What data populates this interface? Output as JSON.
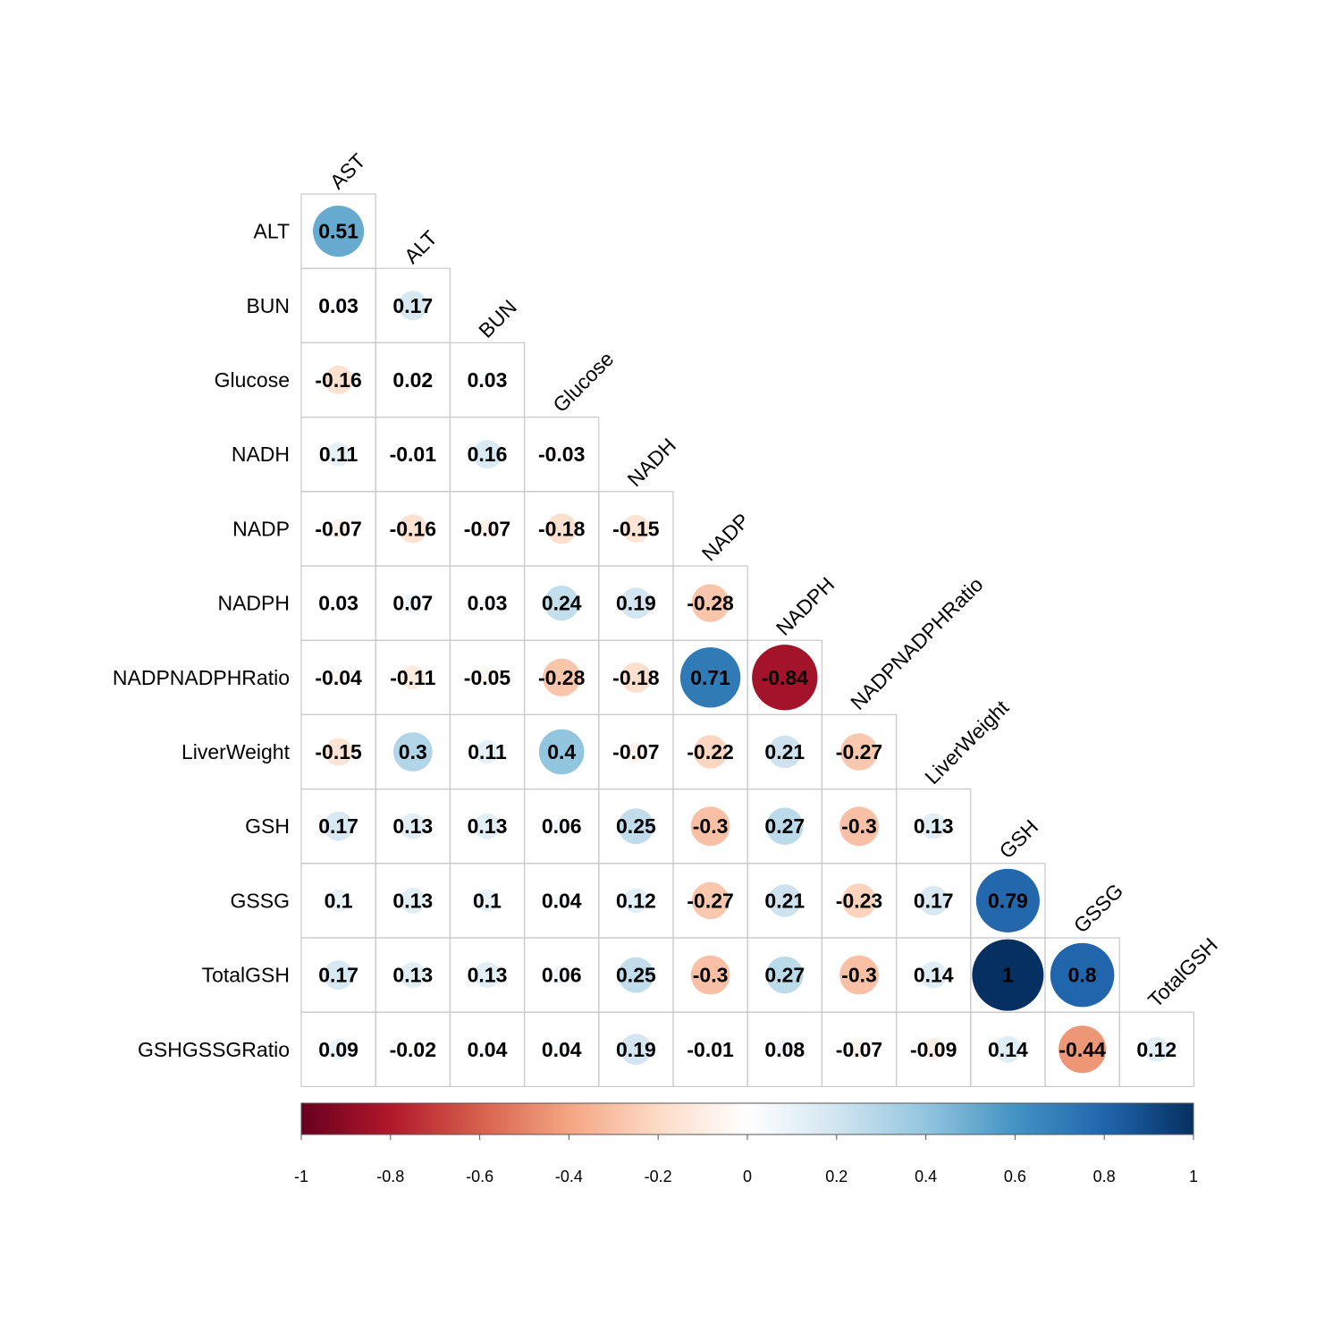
{
  "chart_data": {
    "type": "heatmap",
    "title": "",
    "variables": [
      "AST",
      "ALT",
      "BUN",
      "Glucose",
      "NADH",
      "NADP",
      "NADPH",
      "NADPNADPHRatio",
      "LiverWeight",
      "GSH",
      "GSSG",
      "TotalGSH",
      "GSHGSSGRatio"
    ],
    "row_labels": [
      "ALT",
      "BUN",
      "Glucose",
      "NADH",
      "NADP",
      "NADPH",
      "NADPNADPHRatio",
      "LiverWeight",
      "GSH",
      "GSSG",
      "TotalGSH",
      "GSHGSSGRatio"
    ],
    "col_labels": [
      "AST",
      "ALT",
      "BUN",
      "Glucose",
      "NADH",
      "NADP",
      "NADPH",
      "NADPNADPHRatio",
      "LiverWeight",
      "GSH",
      "GSSG",
      "TotalGSH"
    ],
    "matrix_shape": "lower-triangle",
    "values": [
      [
        0.51
      ],
      [
        0.03,
        0.17
      ],
      [
        -0.16,
        0.02,
        0.03
      ],
      [
        0.11,
        -0.01,
        0.16,
        -0.03
      ],
      [
        -0.07,
        -0.16,
        -0.07,
        -0.18,
        -0.15
      ],
      [
        0.03,
        0.07,
        0.03,
        0.24,
        0.19,
        -0.28
      ],
      [
        -0.04,
        -0.11,
        -0.05,
        -0.28,
        -0.18,
        0.71,
        -0.84
      ],
      [
        -0.15,
        0.3,
        0.11,
        0.4,
        -0.07,
        -0.22,
        0.21,
        -0.27
      ],
      [
        0.17,
        0.13,
        0.13,
        0.06,
        0.25,
        -0.3,
        0.27,
        -0.3,
        0.13
      ],
      [
        0.1,
        0.13,
        0.1,
        0.04,
        0.12,
        -0.27,
        0.21,
        -0.23,
        0.17,
        0.79
      ],
      [
        0.17,
        0.13,
        0.13,
        0.06,
        0.25,
        -0.3,
        0.27,
        -0.3,
        0.14,
        1,
        0.8
      ],
      [
        0.09,
        -0.02,
        0.04,
        0.04,
        0.19,
        -0.01,
        0.08,
        -0.07,
        -0.09,
        0.14,
        -0.44,
        0.12
      ]
    ],
    "value_labels": [
      [
        "0.51"
      ],
      [
        "0.03",
        "0.17"
      ],
      [
        "-0.16",
        "0.02",
        "0.03"
      ],
      [
        "0.11",
        "-0.01",
        "0.16",
        "-0.03"
      ],
      [
        "-0.07",
        "-0.16",
        "-0.07",
        "-0.18",
        "-0.15"
      ],
      [
        "0.03",
        "0.07",
        "0.03",
        "0.24",
        "0.19",
        "-0.28"
      ],
      [
        "-0.04",
        "-0.11",
        "-0.05",
        "-0.28",
        "-0.18",
        "0.71",
        "-0.84"
      ],
      [
        "-0.15",
        "0.3",
        "0.11",
        "0.4",
        "-0.07",
        "-0.22",
        "0.21",
        "-0.27"
      ],
      [
        "0.17",
        "0.13",
        "0.13",
        "0.06",
        "0.25",
        "-0.3",
        "0.27",
        "-0.3",
        "0.13"
      ],
      [
        "0.1",
        "0.13",
        "0.1",
        "0.04",
        "0.12",
        "-0.27",
        "0.21",
        "-0.23",
        "0.17",
        "0.79"
      ],
      [
        "0.17",
        "0.13",
        "0.13",
        "0.06",
        "0.25",
        "-0.3",
        "0.27",
        "-0.3",
        "0.14",
        "1",
        "0.8"
      ],
      [
        "0.09",
        "-0.02",
        "0.04",
        "0.04",
        "0.19",
        "-0.01",
        "0.08",
        "-0.07",
        "-0.09",
        "0.14",
        "-0.44",
        "0.12"
      ]
    ],
    "marker": "circle sized by |r|",
    "color_scale": {
      "range": [
        -1,
        1
      ],
      "ticks": [
        "-1",
        "-0.8",
        "-0.6",
        "-0.4",
        "-0.2",
        "0",
        "0.2",
        "0.4",
        "0.6",
        "0.8",
        "1"
      ],
      "colors": [
        "#67001F",
        "#B2182B",
        "#D6604D",
        "#F4A582",
        "#FDDBC7",
        "#FFFFFF",
        "#D1E5F0",
        "#92C5DE",
        "#4393C3",
        "#2166AC",
        "#053061"
      ],
      "position": "bottom"
    }
  }
}
